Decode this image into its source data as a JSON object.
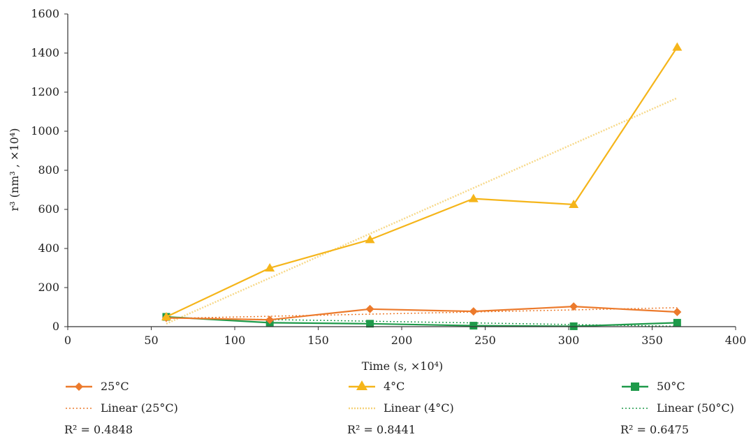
{
  "chart_data": {
    "type": "line",
    "x_label": "Time (s, ×10⁴)",
    "y_label": "r³ (nm³ , ×10⁴)",
    "x_range": [
      0,
      400
    ],
    "y_range": [
      0,
      1600
    ],
    "x_ticks": [
      0,
      50,
      100,
      150,
      200,
      250,
      300,
      350,
      400
    ],
    "y_ticks": [
      0,
      200,
      400,
      600,
      800,
      1000,
      1200,
      1400,
      1600
    ],
    "grid": false,
    "legend_position": "bottom",
    "series": [
      {
        "name": "25°C",
        "color": "#ec7a2c",
        "marker": "diamond",
        "x": [
          59,
          121,
          181,
          243,
          303,
          365
        ],
        "y": [
          45,
          35,
          90,
          78,
          103,
          75
        ],
        "trendline": {
          "name": "Linear (25°C)",
          "r2_label": "R² = 0.4848",
          "y_start": 42,
          "y_end": 97
        }
      },
      {
        "name": "4°C",
        "color": "#f5b51a",
        "marker": "triangle",
        "x": [
          59,
          121,
          181,
          243,
          303,
          365
        ],
        "y": [
          50,
          300,
          445,
          655,
          625,
          1430
        ],
        "trendline": {
          "name": "Linear (4°C)",
          "r2_label": "R² = 0.8441",
          "y_start": 15,
          "y_end": 1170
        }
      },
      {
        "name": "50°C",
        "color": "#1e9a4a",
        "marker": "square",
        "x": [
          59,
          121,
          181,
          243,
          303,
          365
        ],
        "y": [
          50,
          20,
          15,
          5,
          2,
          20
        ],
        "trendline": {
          "name": "Linear (50°C)",
          "r2_label": "R² = 0.6475",
          "y_start": 45,
          "y_end": 2
        }
      }
    ]
  }
}
